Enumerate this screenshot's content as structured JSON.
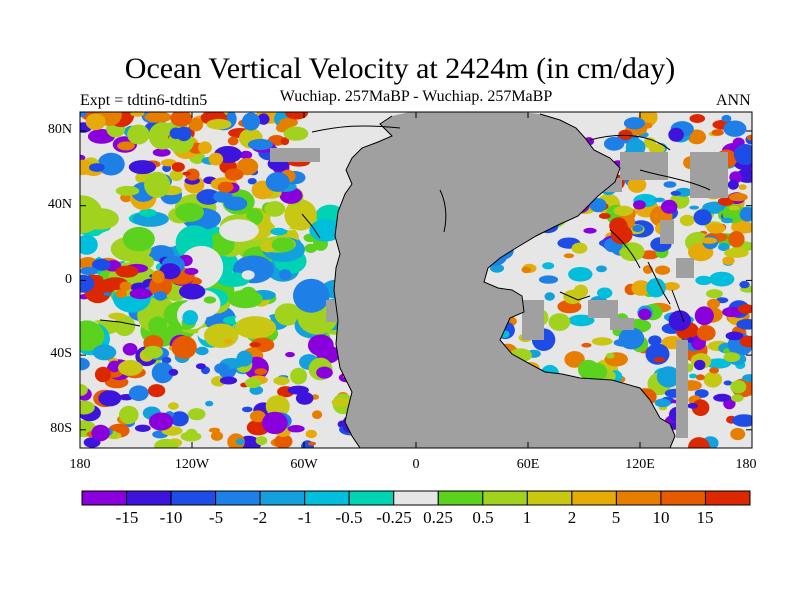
{
  "figure": {
    "title": "Ocean Vertical Velocity at 2424m (in cm/day)",
    "subtitle": "Wuchiap. 257MaBP - Wuchiap. 257MaBP",
    "left_label": "Expt = tdtin6-tdtin5",
    "right_label": "ANN"
  },
  "axes": {
    "lon_ticks": [
      "180",
      "120W",
      "60W",
      "0",
      "60E",
      "120E",
      "180"
    ],
    "lat_ticks": [
      "80N",
      "40N",
      "0",
      "40S",
      "80S"
    ]
  },
  "colorbar": {
    "labels": [
      "-15",
      "-10",
      "-5",
      "-2",
      "-1",
      "-0.5",
      "-0.25",
      "0.25",
      "0.5",
      "1",
      "2",
      "5",
      "10",
      "15"
    ],
    "colors": [
      "#8a00dc",
      "#3c14dc",
      "#1e4ce6",
      "#1e7fe6",
      "#14a0dc",
      "#00bedc",
      "#00d2b4",
      "#e6e6e6",
      "#5ad21e",
      "#a0d21e",
      "#c8c814",
      "#e6aa0a",
      "#e67f00",
      "#e65a00",
      "#dc2800"
    ]
  },
  "colors": {
    "land": "#a0a0a0",
    "background": "#ffffff"
  }
}
